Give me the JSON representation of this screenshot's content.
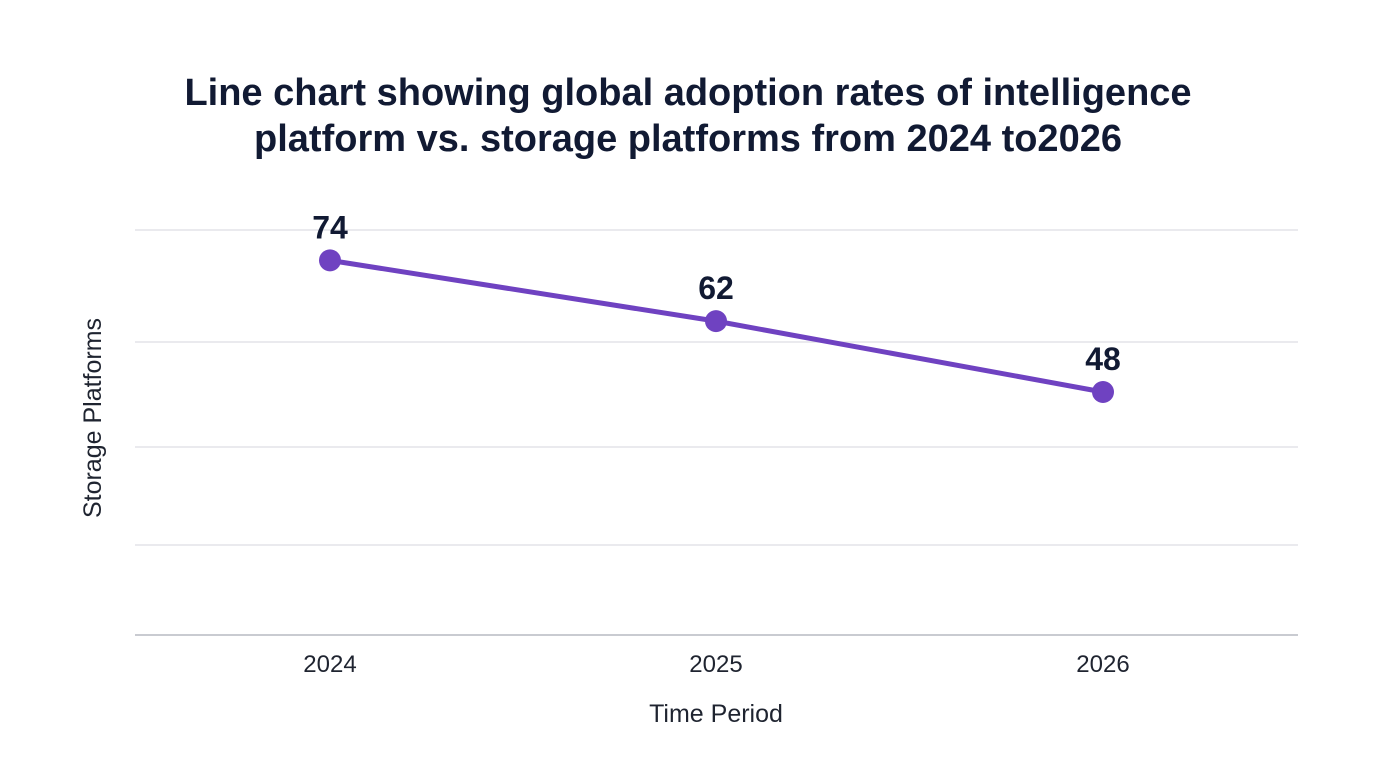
{
  "chart_data": {
    "type": "line",
    "title_lines": [
      "Line chart showing global adoption rates of intelligence",
      "platform  vs. storage platforms from 2024 to2026"
    ],
    "xlabel": "Time Period",
    "ylabel": "Storage Platforms",
    "categories": [
      "2024",
      "2025",
      "2026"
    ],
    "series": [
      {
        "values": [
          74,
          62,
          48
        ],
        "color": "#6f42c1"
      }
    ],
    "ylim": [
      0,
      80
    ],
    "grid": true,
    "legend": "none"
  }
}
